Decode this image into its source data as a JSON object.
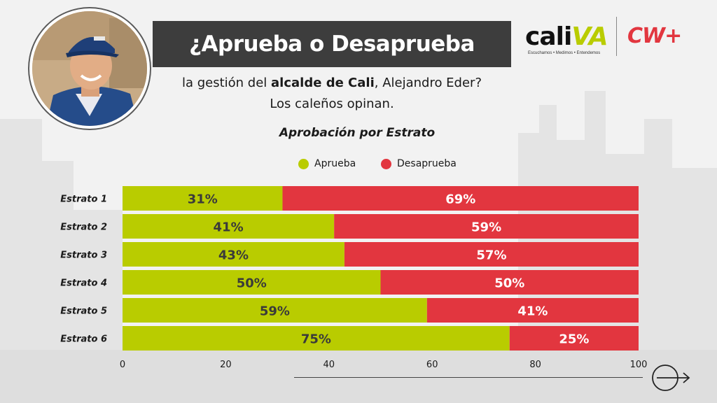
{
  "header": {
    "title": "¿Aprueba o Desaprueba",
    "subtitle_pre": "la gestión del ",
    "subtitle_bold": "alcalde de Cali",
    "subtitle_post": ", Alejandro Eder?",
    "subtitle_line2": "Los caleños opinan."
  },
  "logos": {
    "caliva_main": "cali",
    "caliva_accent": "VA",
    "caliva_tagline": "Escuchamos • Medimos • Entendemos",
    "cw": "CW+"
  },
  "colors": {
    "aprueba": "#b9cc00",
    "desaprueba": "#e2363f",
    "title_bar": "#3d3d3d"
  },
  "chart_data": {
    "type": "bar",
    "orientation": "horizontal",
    "stacked": true,
    "title": "Aprobación por Estrato",
    "categories": [
      "Estrato 1",
      "Estrato 2",
      "Estrato 3",
      "Estrato 4",
      "Estrato 5",
      "Estrato 6"
    ],
    "series": [
      {
        "name": "Aprueba",
        "values": [
          31,
          41,
          43,
          50,
          59,
          75
        ]
      },
      {
        "name": "Desaprueba",
        "values": [
          69,
          59,
          57,
          50,
          41,
          25
        ]
      }
    ],
    "value_labels": {
      "Aprueba": [
        "31%",
        "41%",
        "43%",
        "50%",
        "59%",
        "75%"
      ],
      "Desaprueba": [
        "69%",
        "59%",
        "57%",
        "50%",
        "41%",
        "25%"
      ]
    },
    "xlim": [
      0,
      100
    ],
    "x_ticks": [
      0,
      20,
      40,
      60,
      80,
      100
    ],
    "x_tick_labels": [
      "0",
      "20",
      "40",
      "60",
      "80",
      "100"
    ],
    "legend_position": "top-center",
    "grid": false
  }
}
